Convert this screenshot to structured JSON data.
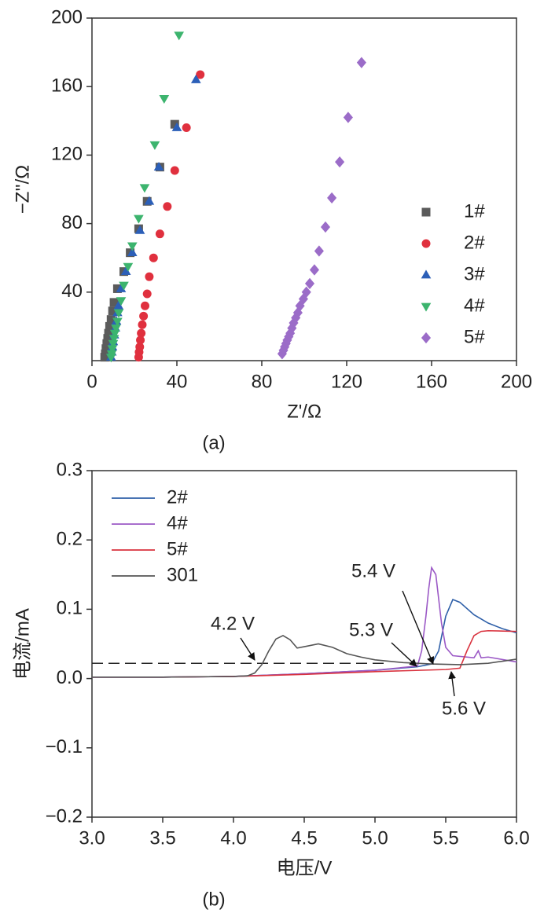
{
  "chart_data": [
    {
      "type": "scatter",
      "caption": "(a)",
      "x_label": "Z'/Ω",
      "y_label": "−Z''/Ω",
      "xlim": [
        0,
        200
      ],
      "xticks": [
        0,
        40,
        80,
        120,
        160,
        200
      ],
      "ylim": [
        0,
        200
      ],
      "yticks": [
        40,
        80,
        120,
        160,
        200
      ],
      "legend": "lower right",
      "grid": false,
      "series": [
        {
          "name": "1#",
          "color": "#5b5b5b",
          "marker": "square",
          "x": [
            6,
            6.3,
            6.6,
            7,
            7.4,
            7.8,
            8.3,
            9,
            9.7,
            10.4,
            12,
            15,
            18,
            22,
            26,
            32,
            39
          ],
          "values": [
            2,
            4,
            7,
            10,
            13,
            16,
            20,
            24,
            29,
            34,
            42,
            52,
            63,
            77,
            93,
            113,
            138
          ]
        },
        {
          "name": "2#",
          "color": "#e0303e",
          "marker": "circle",
          "x": [
            22,
            22.2,
            22.5,
            22.8,
            23.2,
            23.7,
            24.3,
            25,
            26,
            27,
            29,
            32,
            35.5,
            39,
            44.5,
            51
          ],
          "values": [
            2,
            5,
            8,
            12,
            16,
            21,
            26,
            32,
            39,
            49,
            60,
            74,
            90,
            111,
            136,
            167
          ]
        },
        {
          "name": "3#",
          "color": "#2c5fb8",
          "marker": "triangle-up",
          "x": [
            9,
            9.3,
            9.6,
            10,
            10.5,
            11,
            11.5,
            12,
            12.5,
            13.7,
            16,
            19,
            22.6,
            27,
            31.5,
            40,
            49
          ],
          "values": [
            2,
            5,
            8,
            11,
            15,
            19,
            23,
            28,
            32,
            42,
            52,
            63,
            76,
            93,
            113,
            136,
            164
          ]
        },
        {
          "name": "4#",
          "color": "#3cb46e",
          "marker": "triangle-down",
          "x": [
            9,
            9.3,
            9.6,
            10,
            10.4,
            10.8,
            11.3,
            12,
            12.6,
            13.7,
            15,
            17,
            19,
            22,
            24.8,
            29.6,
            34,
            41
          ],
          "values": [
            2,
            4,
            7,
            10,
            13,
            16,
            19,
            23,
            28,
            35,
            44,
            55,
            67,
            83,
            101,
            126,
            153,
            190
          ]
        },
        {
          "name": "5#",
          "color": "#9b6cc8",
          "marker": "diamond",
          "x": [
            89.6,
            90.2,
            90.8,
            91.4,
            92,
            92.7,
            93.4,
            94.2,
            95,
            96,
            97,
            98,
            99.6,
            101,
            102.6,
            104.8,
            107,
            110,
            113,
            116.7,
            120.7,
            127
          ],
          "values": [
            4,
            6,
            8,
            10,
            12,
            14,
            16,
            19,
            22,
            25,
            28,
            32,
            36,
            40,
            45,
            53,
            64,
            78,
            95,
            116,
            142,
            174
          ]
        }
      ]
    },
    {
      "type": "line",
      "caption": "(b)",
      "x_label": "电压/V",
      "y_label": "电流/mA",
      "xlim": [
        3,
        6
      ],
      "xticks": [
        {
          "value": 3,
          "label": "3.0"
        },
        3.5,
        {
          "value": 4,
          "label": "4.0"
        },
        4.5,
        {
          "value": 5,
          "label": "5.0"
        },
        5.5,
        {
          "value": 6,
          "label": "6.0"
        }
      ],
      "ylim": [
        -0.2,
        0.3
      ],
      "yticks": [
        {
          "value": -0.2,
          "label": "−0.2"
        },
        {
          "value": -0.1,
          "label": "−0.1"
        },
        {
          "value": 0,
          "label": "0.0"
        },
        0.1,
        0.2,
        0.3
      ],
      "legend": "upper left",
      "grid": false,
      "hline": {
        "y": 0.022,
        "xlim": [
          3,
          5.1
        ],
        "color": "#222",
        "dashed": true
      },
      "annotations": [
        "4.2 V",
        "5.3 V",
        "5.4 V",
        "5.6 V"
      ],
      "series": [
        {
          "name": "2#",
          "color": "#2e5fa8",
          "x": [
            3.0,
            3.5,
            4.0,
            4.5,
            5.0,
            5.3,
            5.4,
            5.45,
            5.5,
            5.55,
            5.6,
            5.7,
            5.8,
            5.9,
            6.0
          ],
          "values": [
            0.002,
            0.002,
            0.003,
            0.007,
            0.012,
            0.017,
            0.021,
            0.04,
            0.09,
            0.114,
            0.11,
            0.092,
            0.08,
            0.072,
            0.066
          ]
        },
        {
          "name": "4#",
          "color": "#9b59c6",
          "x": [
            3.0,
            3.5,
            4.0,
            4.5,
            5.0,
            5.3,
            5.33,
            5.36,
            5.38,
            5.4,
            5.43,
            5.47,
            5.5,
            5.55,
            5.7,
            5.73,
            5.75,
            5.8,
            6.0
          ],
          "values": [
            0.002,
            0.002,
            0.003,
            0.007,
            0.012,
            0.018,
            0.04,
            0.09,
            0.13,
            0.16,
            0.15,
            0.08,
            0.045,
            0.033,
            0.03,
            0.04,
            0.03,
            0.031,
            0.024
          ]
        },
        {
          "name": "5#",
          "color": "#d9323e",
          "x": [
            3.0,
            3.5,
            4.0,
            4.5,
            5.0,
            5.5,
            5.6,
            5.65,
            5.7,
            5.75,
            5.8,
            6.0
          ],
          "values": [
            0.002,
            0.002,
            0.003,
            0.006,
            0.01,
            0.013,
            0.015,
            0.04,
            0.062,
            0.068,
            0.069,
            0.068
          ]
        },
        {
          "name": "301",
          "color": "#555555",
          "x": [
            3.0,
            3.5,
            4.0,
            4.1,
            4.15,
            4.2,
            4.25,
            4.3,
            4.35,
            4.4,
            4.45,
            4.5,
            4.6,
            4.7,
            4.8,
            4.9,
            5.0,
            5.2,
            5.4,
            5.6,
            5.8,
            6.0
          ],
          "values": [
            0.002,
            0.002,
            0.003,
            0.004,
            0.008,
            0.02,
            0.04,
            0.057,
            0.062,
            0.056,
            0.044,
            0.046,
            0.05,
            0.045,
            0.036,
            0.031,
            0.027,
            0.023,
            0.021,
            0.02,
            0.022,
            0.028
          ]
        }
      ]
    }
  ]
}
